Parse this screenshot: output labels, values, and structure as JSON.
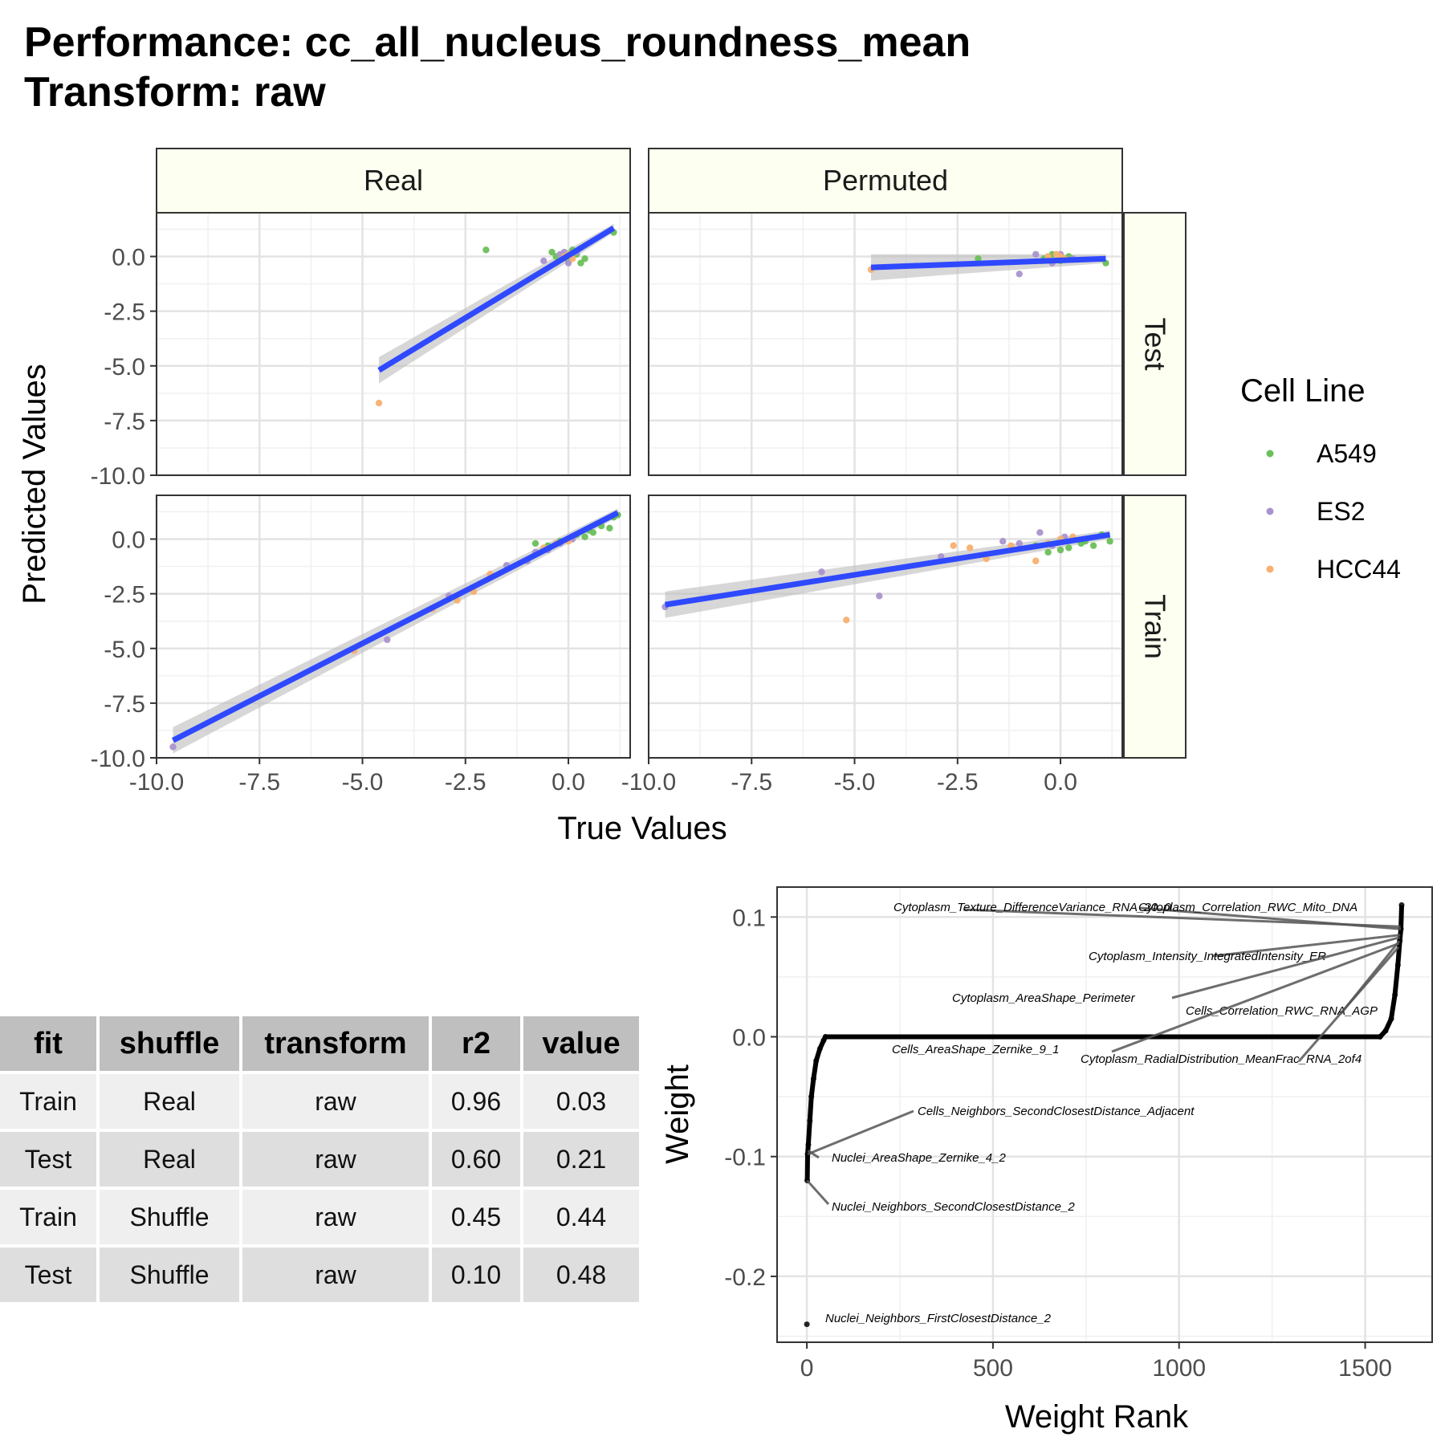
{
  "title": {
    "line1": "Performance: cc_all_nucleus_roundness_mean",
    "line2": "Transform: raw"
  },
  "colors": {
    "A549": "#6abf59",
    "ES2": "#aa93cd",
    "HCC44": "#f7b06f",
    "fit_line": "#2f49ff",
    "ribbon": "#bdbdbd",
    "strip_fill": "#fdfff0"
  },
  "chart_data": [
    {
      "type": "scatter",
      "title": "",
      "xlabel": "True Values",
      "ylabel": "Predicted Values",
      "xlim": [
        -10,
        1.5
      ],
      "ylim": [
        -10,
        2
      ],
      "x_ticks": [
        "-10.0",
        "-7.5",
        "-5.0",
        "-2.5",
        "0.0"
      ],
      "y_ticks": [
        "0.0",
        "-2.5",
        "-5.0",
        "-7.5",
        "-10.0"
      ],
      "columns": [
        "Real",
        "Permuted"
      ],
      "rows": [
        "Test",
        "Train"
      ],
      "legend": {
        "title": "Cell Line",
        "position": "right",
        "entries": [
          "A549",
          "ES2",
          "HCC44"
        ]
      },
      "panels": [
        {
          "column": "Real",
          "row": "Test",
          "fit": {
            "x": [
              -4.6,
              1.1
            ],
            "y": [
              -5.2,
              1.3
            ]
          },
          "points": [
            {
              "x": -2.0,
              "y": 0.3,
              "g": "A549"
            },
            {
              "x": 1.1,
              "y": 1.1,
              "g": "A549"
            },
            {
              "x": 0.2,
              "y": 0.1,
              "g": "A549"
            },
            {
              "x": 0.4,
              "y": -0.1,
              "g": "A549"
            },
            {
              "x": 0.1,
              "y": 0.3,
              "g": "A549"
            },
            {
              "x": -0.3,
              "y": 0.0,
              "g": "A549"
            },
            {
              "x": -0.4,
              "y": 0.2,
              "g": "A549"
            },
            {
              "x": 0.0,
              "y": -0.2,
              "g": "A549"
            },
            {
              "x": 0.3,
              "y": -0.3,
              "g": "A549"
            },
            {
              "x": -0.6,
              "y": -0.2,
              "g": "ES2"
            },
            {
              "x": -0.2,
              "y": 0.1,
              "g": "ES2"
            },
            {
              "x": 0.0,
              "y": -0.3,
              "g": "ES2"
            },
            {
              "x": -0.1,
              "y": 0.2,
              "g": "ES2"
            },
            {
              "x": 0.2,
              "y": 0.2,
              "g": "ES2"
            },
            {
              "x": -4.6,
              "y": -6.7,
              "g": "HCC44"
            },
            {
              "x": -0.3,
              "y": -0.3,
              "g": "HCC44"
            },
            {
              "x": -0.1,
              "y": 0.0,
              "g": "HCC44"
            },
            {
              "x": 0.1,
              "y": -0.1,
              "g": "HCC44"
            },
            {
              "x": 0.0,
              "y": 0.1,
              "g": "HCC44"
            }
          ]
        },
        {
          "column": "Permuted",
          "row": "Test",
          "fit": {
            "x": [
              -4.6,
              1.1
            ],
            "y": [
              -0.5,
              -0.1
            ]
          },
          "points": [
            {
              "x": -2.0,
              "y": -0.1,
              "g": "A549"
            },
            {
              "x": 1.1,
              "y": -0.3,
              "g": "A549"
            },
            {
              "x": 0.2,
              "y": 0.0,
              "g": "A549"
            },
            {
              "x": -0.4,
              "y": -0.1,
              "g": "A549"
            },
            {
              "x": 0.0,
              "y": -0.2,
              "g": "A549"
            },
            {
              "x": -0.2,
              "y": 0.1,
              "g": "A549"
            },
            {
              "x": -1.0,
              "y": -0.8,
              "g": "ES2"
            },
            {
              "x": -0.2,
              "y": -0.3,
              "g": "ES2"
            },
            {
              "x": 0.0,
              "y": 0.1,
              "g": "ES2"
            },
            {
              "x": -0.6,
              "y": 0.1,
              "g": "ES2"
            },
            {
              "x": 0.3,
              "y": -0.1,
              "g": "ES2"
            },
            {
              "x": -4.6,
              "y": -0.6,
              "g": "HCC44"
            },
            {
              "x": -0.3,
              "y": 0.0,
              "g": "HCC44"
            },
            {
              "x": 0.0,
              "y": 0.0,
              "g": "HCC44"
            },
            {
              "x": -0.1,
              "y": 0.1,
              "g": "HCC44"
            },
            {
              "x": 0.1,
              "y": -0.1,
              "g": "HCC44"
            }
          ]
        },
        {
          "column": "Real",
          "row": "Train",
          "fit": {
            "x": [
              -9.6,
              1.2
            ],
            "y": [
              -9.2,
              1.2
            ]
          },
          "points": [
            {
              "x": 1.1,
              "y": 1.0,
              "g": "A549"
            },
            {
              "x": 1.0,
              "y": 0.5,
              "g": "A549"
            },
            {
              "x": 0.8,
              "y": 0.6,
              "g": "A549"
            },
            {
              "x": 0.6,
              "y": 0.3,
              "g": "A549"
            },
            {
              "x": 0.4,
              "y": 0.1,
              "g": "A549"
            },
            {
              "x": 0.2,
              "y": 0.2,
              "g": "A549"
            },
            {
              "x": 0.0,
              "y": 0.0,
              "g": "A549"
            },
            {
              "x": -0.2,
              "y": -0.1,
              "g": "A549"
            },
            {
              "x": -0.5,
              "y": -0.3,
              "g": "A549"
            },
            {
              "x": -0.8,
              "y": -0.2,
              "g": "A549"
            },
            {
              "x": 1.2,
              "y": 1.1,
              "g": "A549"
            },
            {
              "x": 0.5,
              "y": 0.4,
              "g": "A549"
            },
            {
              "x": -9.6,
              "y": -9.5,
              "g": "ES2"
            },
            {
              "x": -4.4,
              "y": -4.6,
              "g": "ES2"
            },
            {
              "x": -1.5,
              "y": -1.2,
              "g": "ES2"
            },
            {
              "x": -1.0,
              "y": -1.0,
              "g": "ES2"
            },
            {
              "x": -0.8,
              "y": -0.6,
              "g": "ES2"
            },
            {
              "x": -0.5,
              "y": -0.5,
              "g": "ES2"
            },
            {
              "x": -0.2,
              "y": -0.2,
              "g": "ES2"
            },
            {
              "x": 0.1,
              "y": 0.0,
              "g": "ES2"
            },
            {
              "x": -2.9,
              "y": -2.6,
              "g": "ES2"
            },
            {
              "x": -5.2,
              "y": -5.1,
              "g": "HCC44"
            },
            {
              "x": -2.7,
              "y": -2.8,
              "g": "HCC44"
            },
            {
              "x": -2.3,
              "y": -2.4,
              "g": "HCC44"
            },
            {
              "x": -1.9,
              "y": -1.6,
              "g": "HCC44"
            },
            {
              "x": -3.3,
              "y": -3.2,
              "g": "HCC44"
            },
            {
              "x": -0.6,
              "y": -0.4,
              "g": "HCC44"
            },
            {
              "x": -0.3,
              "y": -0.2,
              "g": "HCC44"
            },
            {
              "x": 0.0,
              "y": -0.1,
              "g": "HCC44"
            }
          ]
        },
        {
          "column": "Permuted",
          "row": "Train",
          "fit": {
            "x": [
              -9.6,
              1.2
            ],
            "y": [
              -3.0,
              0.2
            ]
          },
          "points": [
            {
              "x": 1.2,
              "y": -0.1,
              "g": "A549"
            },
            {
              "x": 1.0,
              "y": 0.2,
              "g": "A549"
            },
            {
              "x": 0.8,
              "y": -0.3,
              "g": "A549"
            },
            {
              "x": 0.5,
              "y": -0.2,
              "g": "A549"
            },
            {
              "x": 0.2,
              "y": -0.4,
              "g": "A549"
            },
            {
              "x": 0.0,
              "y": -0.5,
              "g": "A549"
            },
            {
              "x": -0.3,
              "y": -0.6,
              "g": "A549"
            },
            {
              "x": -0.6,
              "y": -0.3,
              "g": "A549"
            },
            {
              "x": 0.6,
              "y": -0.1,
              "g": "A549"
            },
            {
              "x": -9.6,
              "y": -3.1,
              "g": "ES2"
            },
            {
              "x": -5.8,
              "y": -1.5,
              "g": "ES2"
            },
            {
              "x": -4.4,
              "y": -2.6,
              "g": "ES2"
            },
            {
              "x": -2.9,
              "y": -0.8,
              "g": "ES2"
            },
            {
              "x": -1.4,
              "y": -0.1,
              "g": "ES2"
            },
            {
              "x": -1.0,
              "y": -0.2,
              "g": "ES2"
            },
            {
              "x": -0.5,
              "y": 0.3,
              "g": "ES2"
            },
            {
              "x": -0.2,
              "y": -0.3,
              "g": "ES2"
            },
            {
              "x": 0.1,
              "y": 0.1,
              "g": "ES2"
            },
            {
              "x": -5.2,
              "y": -3.7,
              "g": "HCC44"
            },
            {
              "x": -2.6,
              "y": -0.3,
              "g": "HCC44"
            },
            {
              "x": -2.2,
              "y": -0.4,
              "g": "HCC44"
            },
            {
              "x": -1.8,
              "y": -0.9,
              "g": "HCC44"
            },
            {
              "x": -1.2,
              "y": -0.3,
              "g": "HCC44"
            },
            {
              "x": -0.6,
              "y": -1.0,
              "g": "HCC44"
            },
            {
              "x": -0.3,
              "y": -0.2,
              "g": "HCC44"
            },
            {
              "x": 0.0,
              "y": 0.0,
              "g": "HCC44"
            },
            {
              "x": 0.3,
              "y": 0.1,
              "g": "HCC44"
            }
          ]
        }
      ]
    },
    {
      "type": "table",
      "columns": [
        "fit",
        "shuffle",
        "transform",
        "r2",
        "value"
      ],
      "rows": [
        [
          "Train",
          "Real",
          "raw",
          "0.96",
          "0.03"
        ],
        [
          "Test",
          "Real",
          "raw",
          "0.60",
          "0.21"
        ],
        [
          "Train",
          "Shuffle",
          "raw",
          "0.45",
          "0.44"
        ],
        [
          "Test",
          "Shuffle",
          "raw",
          "0.10",
          "0.48"
        ]
      ]
    },
    {
      "type": "scatter",
      "title": "",
      "xlabel": "Weight Rank",
      "ylabel": "Weight",
      "xlim": [
        -80,
        1680
      ],
      "ylim": [
        -0.255,
        0.125
      ],
      "x_ticks": [
        "0",
        "500",
        "1000",
        "1500"
      ],
      "y_ticks": [
        "0.1",
        "0.0",
        "-0.1",
        "-0.2"
      ],
      "curve_points": [
        {
          "rank": 0,
          "w": -0.24
        },
        {
          "rank": 1,
          "w": -0.12
        },
        {
          "rank": 2,
          "w": -0.098
        },
        {
          "rank": 4,
          "w": -0.09
        },
        {
          "rank": 8,
          "w": -0.07
        },
        {
          "rank": 12,
          "w": -0.05
        },
        {
          "rank": 18,
          "w": -0.035
        },
        {
          "rank": 25,
          "w": -0.02
        },
        {
          "rank": 35,
          "w": -0.01
        },
        {
          "rank": 45,
          "w": -0.003
        },
        {
          "rank": 50,
          "w": 0.0
        },
        {
          "rank": 1540,
          "w": 0.0
        },
        {
          "rank": 1555,
          "w": 0.005
        },
        {
          "rank": 1570,
          "w": 0.015
        },
        {
          "rank": 1580,
          "w": 0.035
        },
        {
          "rank": 1588,
          "w": 0.06
        },
        {
          "rank": 1593,
          "w": 0.08
        },
        {
          "rank": 1596,
          "w": 0.09
        },
        {
          "rank": 1598,
          "w": 0.11
        }
      ],
      "annotations": [
        {
          "label": "Cytoplasm_Texture_DifferenceVariance_RNA_20_0",
          "rank": 1595,
          "w": 0.092
        },
        {
          "label": "Cytoplasm_Correlation_RWC_Mito_DNA",
          "rank": 1596,
          "w": 0.09
        },
        {
          "label": "Cytoplasm_Intensity_IntegratedIntensity_ER",
          "rank": 1594,
          "w": 0.085
        },
        {
          "label": "Cytoplasm_AreaShape_Perimeter",
          "rank": 1593,
          "w": 0.083
        },
        {
          "label": "Cells_Correlation_RWC_RNA_AGP",
          "rank": 1592,
          "w": 0.08
        },
        {
          "label": "Cells_AreaShape_Zernike_9_1",
          "rank": 1591,
          "w": 0.078
        },
        {
          "label": "Cytoplasm_RadialDistribution_MeanFrac_RNA_2of4",
          "rank": 1590,
          "w": 0.075
        },
        {
          "label": "Cells_Neighbors_SecondClosestDistance_Adjacent",
          "rank": 2,
          "w": -0.098
        },
        {
          "label": "Nuclei_AreaShape_Zernike_4_2",
          "rank": 3,
          "w": -0.095
        },
        {
          "label": "Nuclei_Neighbors_SecondClosestDistance_2",
          "rank": 1,
          "w": -0.12
        },
        {
          "label": "Nuclei_Neighbors_FirstClosestDistance_2",
          "rank": 0,
          "w": -0.24
        }
      ]
    }
  ]
}
